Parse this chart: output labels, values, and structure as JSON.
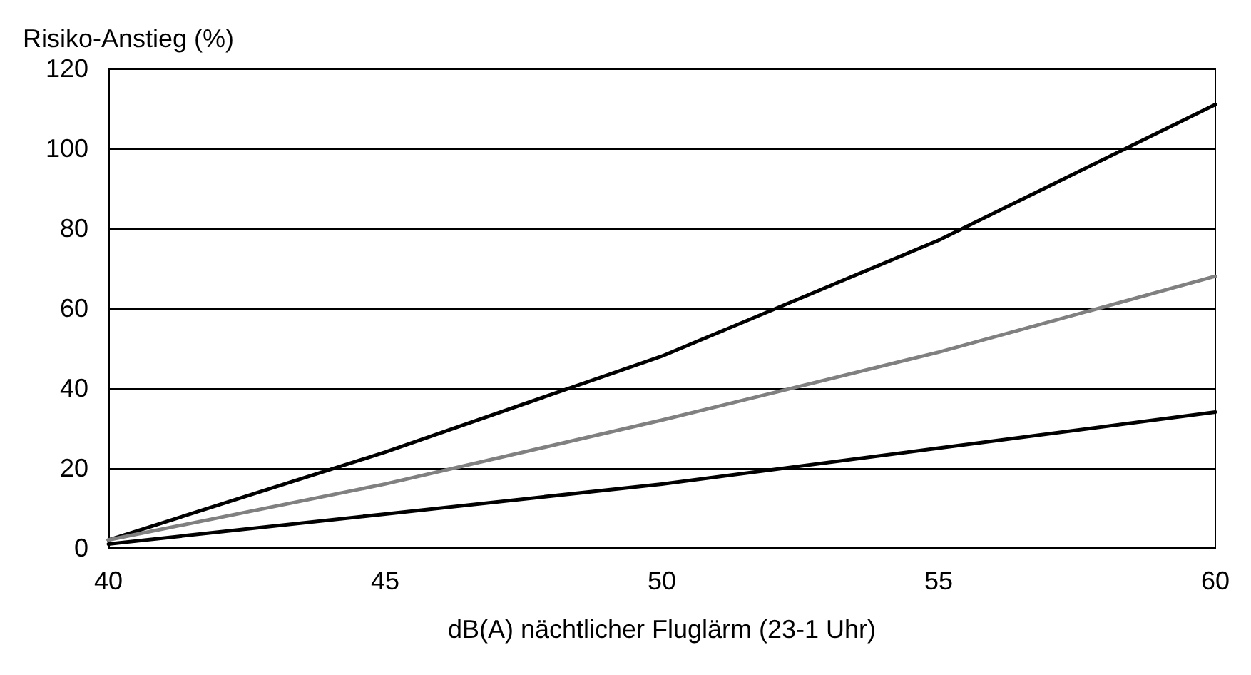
{
  "chart_data": {
    "type": "line",
    "ylabel": "Risiko-Anstieg (%)",
    "xlabel": "dB(A) nächtlicher Fluglärm (23-1 Uhr)",
    "x": [
      40,
      45,
      50,
      55,
      60
    ],
    "series": [
      {
        "color": "#000000",
        "values": [
          2,
          24,
          48,
          77,
          111
        ]
      },
      {
        "color": "#808080",
        "values": [
          2,
          16,
          32,
          49,
          68
        ]
      },
      {
        "color": "#000000",
        "values": [
          1,
          8.5,
          16,
          25,
          34
        ]
      }
    ],
    "xlim": [
      40,
      60
    ],
    "xticks": [
      40,
      45,
      50,
      55,
      60
    ],
    "ylim": [
      0,
      120
    ],
    "yticks": [
      0,
      20,
      40,
      60,
      80,
      100,
      120
    ],
    "grid": "y",
    "marker": "none",
    "line_style": "solid"
  }
}
